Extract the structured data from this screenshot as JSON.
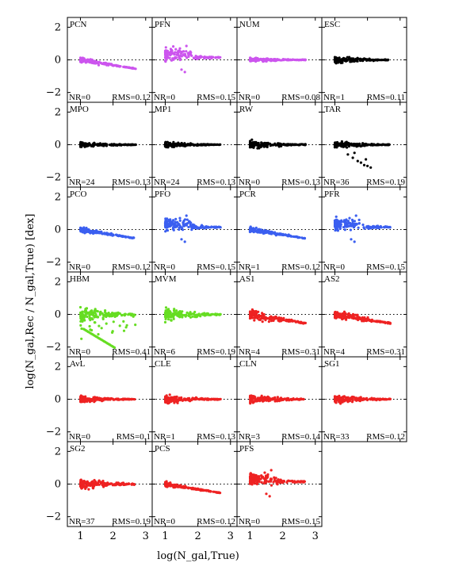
{
  "figure": {
    "ylabel": "log(N_gal,Rec / N_gal,True) [dex]",
    "xlabel": "log(N_gal,True)",
    "ytick_labels": [
      "2",
      "0",
      "−2"
    ],
    "xtick_labels": [
      "1",
      "2",
      "3"
    ]
  },
  "chart_data": [
    {
      "type": "scatter",
      "title": "PCN",
      "color": "#cc55ee",
      "nr": "NR=0",
      "rms": "RMS=0.12",
      "pattern": "tail",
      "spread": 0.12
    },
    {
      "type": "scatter",
      "title": "PFN",
      "color": "#cc55ee",
      "nr": "NR=0",
      "rms": "RMS=0.15",
      "pattern": "bump",
      "spread": 0.25
    },
    {
      "type": "scatter",
      "title": "NUM",
      "color": "#cc55ee",
      "nr": "NR=0",
      "rms": "RMS=0.08",
      "pattern": "flat",
      "spread": 0.1
    },
    {
      "type": "scatter",
      "title": "ESC",
      "color": "#000000",
      "nr": "NR=1",
      "rms": "RMS=0.11",
      "pattern": "flat",
      "spread": 0.15
    },
    {
      "type": "scatter",
      "title": "MPO",
      "color": "#000000",
      "nr": "NR=24",
      "rms": "RMS=0.13",
      "pattern": "flat",
      "spread": 0.12
    },
    {
      "type": "scatter",
      "title": "MP1",
      "color": "#000000",
      "nr": "NR=24",
      "rms": "RMS=0.13",
      "pattern": "flat",
      "spread": 0.12
    },
    {
      "type": "scatter",
      "title": "RW",
      "color": "#000000",
      "nr": "NR=0",
      "rms": "RMS=0.13",
      "pattern": "flat",
      "spread": 0.2
    },
    {
      "type": "scatter",
      "title": "TAR",
      "color": "#000000",
      "nr": "NR=36",
      "rms": "RMS=0.19",
      "pattern": "tar",
      "spread": 0.15
    },
    {
      "type": "scatter",
      "title": "PCO",
      "color": "#3b5ff0",
      "nr": "NR=0",
      "rms": "RMS=0.12",
      "pattern": "tail",
      "spread": 0.12
    },
    {
      "type": "scatter",
      "title": "PFO",
      "color": "#3b5ff0",
      "nr": "NR=0",
      "rms": "RMS=0.15",
      "pattern": "bump",
      "spread": 0.25
    },
    {
      "type": "scatter",
      "title": "PCR",
      "color": "#3b5ff0",
      "nr": "NR=1",
      "rms": "RMS=0.12",
      "pattern": "tail",
      "spread": 0.12
    },
    {
      "type": "scatter",
      "title": "PFR",
      "color": "#3b5ff0",
      "nr": "NR=0",
      "rms": "RMS=0.15",
      "pattern": "bump",
      "spread": 0.25
    },
    {
      "type": "scatter",
      "title": "HBM",
      "color": "#66dd22",
      "nr": "NR=0",
      "rms": "RMS=0.41",
      "pattern": "hbm",
      "spread": 0.35
    },
    {
      "type": "scatter",
      "title": "MVM",
      "color": "#66dd22",
      "nr": "NR=6",
      "rms": "RMS=0.19",
      "pattern": "wide",
      "spread": 0.3
    },
    {
      "type": "scatter",
      "title": "AS1",
      "color": "#ee2222",
      "nr": "NR=4",
      "rms": "RMS=0.31",
      "pattern": "tail",
      "spread": 0.25
    },
    {
      "type": "scatter",
      "title": "AS2",
      "color": "#ee2222",
      "nr": "NR=4",
      "rms": "RMS=0.31",
      "pattern": "tail",
      "spread": 0.25
    },
    {
      "type": "scatter",
      "title": "AvL",
      "color": "#ee2222",
      "nr": "NR=0",
      "rms": "RMS=0.1",
      "pattern": "flat",
      "spread": 0.15
    },
    {
      "type": "scatter",
      "title": "CLE",
      "color": "#ee2222",
      "nr": "NR=1",
      "rms": "RMS=0.13",
      "pattern": "flat",
      "spread": 0.2
    },
    {
      "type": "scatter",
      "title": "CLN",
      "color": "#ee2222",
      "nr": "NR=3",
      "rms": "RMS=0.14",
      "pattern": "flat",
      "spread": 0.2
    },
    {
      "type": "scatter",
      "title": "SG1",
      "color": "#ee2222",
      "nr": "NR=33",
      "rms": "RMS=0.12",
      "pattern": "flat",
      "spread": 0.2
    },
    {
      "type": "scatter",
      "title": "SG2",
      "color": "#ee2222",
      "nr": "NR=37",
      "rms": "RMS=0.19",
      "pattern": "wide",
      "spread": 0.28
    },
    {
      "type": "scatter",
      "title": "PCS",
      "color": "#ee2222",
      "nr": "NR=0",
      "rms": "RMS=0.12",
      "pattern": "tail",
      "spread": 0.12
    },
    {
      "type": "scatter",
      "title": "PFS",
      "color": "#ee2222",
      "nr": "NR=0",
      "rms": "RMS=0.15",
      "pattern": "bump",
      "spread": 0.25
    }
  ]
}
